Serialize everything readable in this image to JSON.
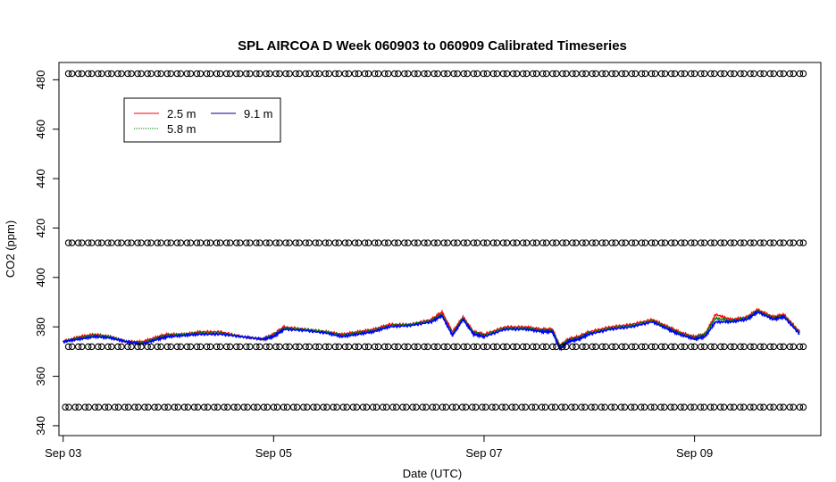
{
  "chart_data": {
    "type": "line",
    "title": "SPL AIRCOA D  Week 060903 to 060909  Calibrated Timeseries",
    "xlabel": "Date (UTC)",
    "ylabel": "CO2 (ppm)",
    "xlim": [
      -0.04,
      7.2
    ],
    "ylim": [
      336,
      487
    ],
    "x_ticks": [
      {
        "value": 0,
        "label": "Sep 03"
      },
      {
        "value": 2,
        "label": "Sep 05"
      },
      {
        "value": 4,
        "label": "Sep 07"
      },
      {
        "value": 6,
        "label": "Sep 09"
      }
    ],
    "y_ticks": [
      340,
      360,
      380,
      400,
      420,
      440,
      460,
      480
    ],
    "legend": {
      "placement": "top-left",
      "entries": [
        {
          "name": "2.5 m",
          "color": "#ff0000"
        },
        {
          "name": "9.1 m",
          "color": "#000080"
        },
        {
          "name": "5.8 m",
          "color": "#008000"
        }
      ]
    },
    "series": [
      {
        "name": "2.5 m",
        "color": "#ff0000",
        "x": [
          0,
          0.15,
          0.3,
          0.45,
          0.6,
          0.75,
          0.9,
          1.0,
          1.15,
          1.3,
          1.5,
          1.7,
          1.9,
          2.0,
          2.1,
          2.3,
          2.5,
          2.65,
          2.8,
          2.95,
          3.1,
          3.3,
          3.5,
          3.6,
          3.7,
          3.8,
          3.9,
          4.0,
          4.2,
          4.4,
          4.55,
          4.65,
          4.72,
          4.8,
          4.9,
          5.0,
          5.2,
          5.4,
          5.6,
          5.75,
          5.85,
          6.0,
          6.1,
          6.2,
          6.35,
          6.5,
          6.6,
          6.75,
          6.85,
          7.0
        ],
        "y": [
          374,
          376,
          377,
          376,
          374,
          374,
          376,
          377,
          377,
          378,
          378,
          376,
          375,
          377,
          380,
          379,
          378,
          377,
          378,
          379,
          381,
          381,
          383,
          386,
          378,
          384,
          378,
          377,
          380,
          380,
          379,
          379,
          372,
          375,
          376,
          378,
          380,
          381,
          383,
          380,
          378,
          376,
          377,
          385,
          383,
          384,
          387,
          384,
          385,
          378
        ]
      },
      {
        "name": "5.8 m",
        "color": "#008000",
        "x": [
          0,
          0.15,
          0.3,
          0.45,
          0.6,
          0.75,
          0.9,
          1.0,
          1.15,
          1.3,
          1.5,
          1.7,
          1.9,
          2.0,
          2.1,
          2.3,
          2.5,
          2.65,
          2.8,
          2.95,
          3.1,
          3.3,
          3.5,
          3.6,
          3.7,
          3.8,
          3.9,
          4.0,
          4.2,
          4.4,
          4.55,
          4.65,
          4.72,
          4.8,
          4.9,
          5.0,
          5.2,
          5.4,
          5.6,
          5.75,
          5.85,
          6.0,
          6.1,
          6.2,
          6.35,
          6.5,
          6.6,
          6.75,
          6.85,
          7.0
        ],
        "y": [
          374,
          375.5,
          376.5,
          376,
          374,
          373.5,
          375.5,
          376.5,
          377,
          377.5,
          377.5,
          376,
          375,
          376.5,
          379.5,
          379,
          378,
          376.5,
          377.5,
          378.5,
          380.5,
          381,
          382.5,
          385,
          377,
          383.5,
          377.5,
          376.5,
          379.5,
          379.5,
          378.5,
          378.5,
          372,
          374.5,
          375.5,
          377.5,
          379.5,
          380.5,
          382.5,
          379.5,
          377.5,
          375.5,
          377,
          383.5,
          382.5,
          383.5,
          386.5,
          383.5,
          384.5,
          377.5
        ]
      },
      {
        "name": "9.1 m",
        "color": "#0000ff",
        "x": [
          0,
          0.15,
          0.3,
          0.45,
          0.6,
          0.75,
          0.9,
          1.0,
          1.15,
          1.3,
          1.5,
          1.7,
          1.9,
          2.0,
          2.1,
          2.3,
          2.5,
          2.65,
          2.8,
          2.95,
          3.1,
          3.3,
          3.5,
          3.6,
          3.7,
          3.8,
          3.9,
          4.0,
          4.2,
          4.4,
          4.55,
          4.65,
          4.72,
          4.8,
          4.9,
          5.0,
          5.2,
          5.4,
          5.6,
          5.75,
          5.85,
          6.0,
          6.1,
          6.2,
          6.35,
          6.5,
          6.6,
          6.75,
          6.85,
          7.0
        ],
        "y": [
          374,
          375,
          376,
          375.5,
          374,
          373,
          375,
          376,
          376.5,
          377,
          377,
          376,
          375,
          376,
          379,
          378.5,
          377.5,
          376,
          377,
          378,
          380,
          380.5,
          382,
          384.5,
          376.5,
          383,
          377,
          376,
          379,
          379,
          378,
          378,
          371,
          374,
          375,
          377,
          379,
          380,
          382,
          379,
          377,
          375,
          376,
          382,
          382,
          383,
          386,
          383,
          384,
          377
        ]
      },
      {
        "name": "calibration 482",
        "type": "points",
        "color": "#000000",
        "y_level": 482.5,
        "x_range": [
          0.05,
          7.0
        ],
        "count": 75
      },
      {
        "name": "calibration 414",
        "type": "points",
        "color": "#000000",
        "y_level": 414,
        "x_range": [
          0.05,
          7.0
        ],
        "count": 75
      },
      {
        "name": "calibration 372",
        "type": "points",
        "color": "#000000",
        "y_level": 372,
        "x_range": [
          0.05,
          7.0
        ],
        "count": 75
      },
      {
        "name": "calibration 347",
        "type": "points",
        "color": "#000000",
        "y_level": 347.5,
        "x_range": [
          0.02,
          7.0
        ],
        "count": 75
      }
    ]
  }
}
